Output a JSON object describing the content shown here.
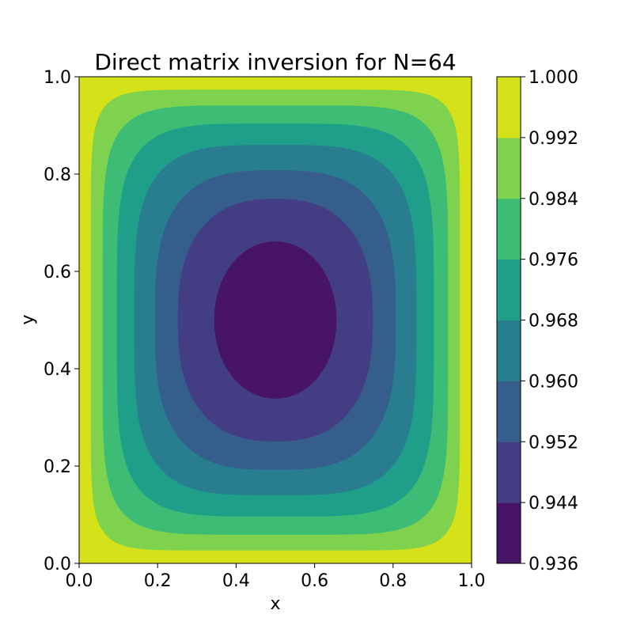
{
  "chart_data": {
    "type": "contour",
    "title": "Direct matrix inversion for N=64",
    "xlabel": "x",
    "ylabel": "y",
    "xlim": [
      0.0,
      1.0
    ],
    "ylim": [
      0.0,
      1.0
    ],
    "x_ticks": [
      "0.0",
      "0.2",
      "0.4",
      "0.6",
      "0.8",
      "1.0"
    ],
    "y_ticks": [
      "0.0",
      "0.2",
      "0.4",
      "0.6",
      "0.8",
      "1.0"
    ],
    "colorbar": {
      "levels": [
        0.936,
        0.944,
        0.952,
        0.96,
        0.968,
        0.976,
        0.984,
        0.992,
        1.0
      ],
      "tick_labels": [
        "0.936",
        "0.944",
        "0.952",
        "0.960",
        "0.968",
        "0.976",
        "0.984",
        "0.992",
        "1.000"
      ],
      "colors": [
        "#481467",
        "#433d84",
        "#355e8d",
        "#287d8e",
        "#1f9e89",
        "#3cbc75",
        "#7ed24e",
        "#d5e21a"
      ],
      "colormap": "viridis"
    },
    "minimum_location": [
      0.5,
      0.5
    ]
  }
}
